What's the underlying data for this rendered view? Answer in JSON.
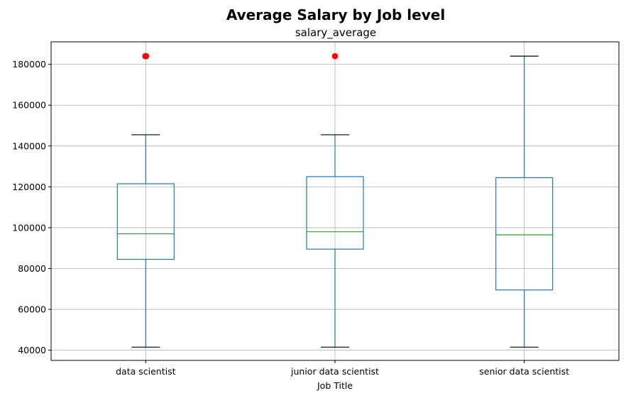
{
  "chart_data": {
    "type": "boxplot",
    "title": "Average Salary by Job level",
    "subtitle": "salary_average",
    "xlabel": "Job Title",
    "ylabel": "",
    "ylim": [
      35000,
      191000
    ],
    "yticks": [
      40000,
      60000,
      80000,
      100000,
      120000,
      140000,
      160000,
      180000
    ],
    "grid": true,
    "categories": [
      "data scientist",
      "junior data scientist",
      "senior data scientist"
    ],
    "boxes": [
      {
        "name": "data scientist",
        "whisker_low": 41500,
        "q1": 84500,
        "median": 97000,
        "q3": 121500,
        "whisker_high": 145500,
        "outliers": [
          184000,
          184000,
          184000
        ]
      },
      {
        "name": "junior data scientist",
        "whisker_low": 41500,
        "q1": 89500,
        "median": 98000,
        "q3": 125000,
        "whisker_high": 145500,
        "outliers": [
          184000
        ]
      },
      {
        "name": "senior data scientist",
        "whisker_low": 41500,
        "q1": 69500,
        "median": 96500,
        "q3": 124500,
        "whisker_high": 184000,
        "outliers": []
      }
    ],
    "colors": {
      "box": "#1f77b4",
      "median": "#2ca02c",
      "outlier": "#ff0000",
      "whisker_cap": "#000000",
      "grid": "#b0b0b0"
    }
  }
}
